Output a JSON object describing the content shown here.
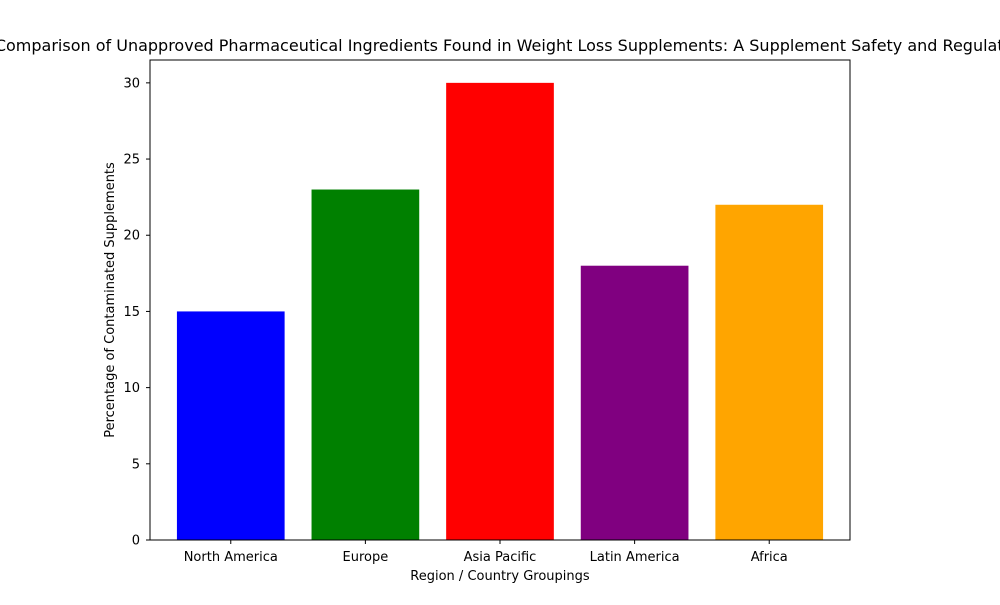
{
  "chart_data": {
    "type": "bar",
    "title": "Regional Comparison of Unapproved Pharmaceutical Ingredients Found in Weight Loss Supplements: A Supplement Safety and Regulation Study",
    "xlabel": "Region / Country Groupings",
    "ylabel": "Percentage of Contaminated Supplements",
    "categories": [
      "North America",
      "Europe",
      "Asia Pacific",
      "Latin America",
      "Africa"
    ],
    "values": [
      15,
      23,
      30,
      18,
      22
    ],
    "colors": [
      "#0000ff",
      "#008000",
      "#ff0000",
      "#800080",
      "#ffa500"
    ],
    "ylim": [
      0,
      31.5
    ],
    "yticks": [
      0,
      5,
      10,
      15,
      20,
      25,
      30
    ],
    "grid": false,
    "legend": "none"
  }
}
